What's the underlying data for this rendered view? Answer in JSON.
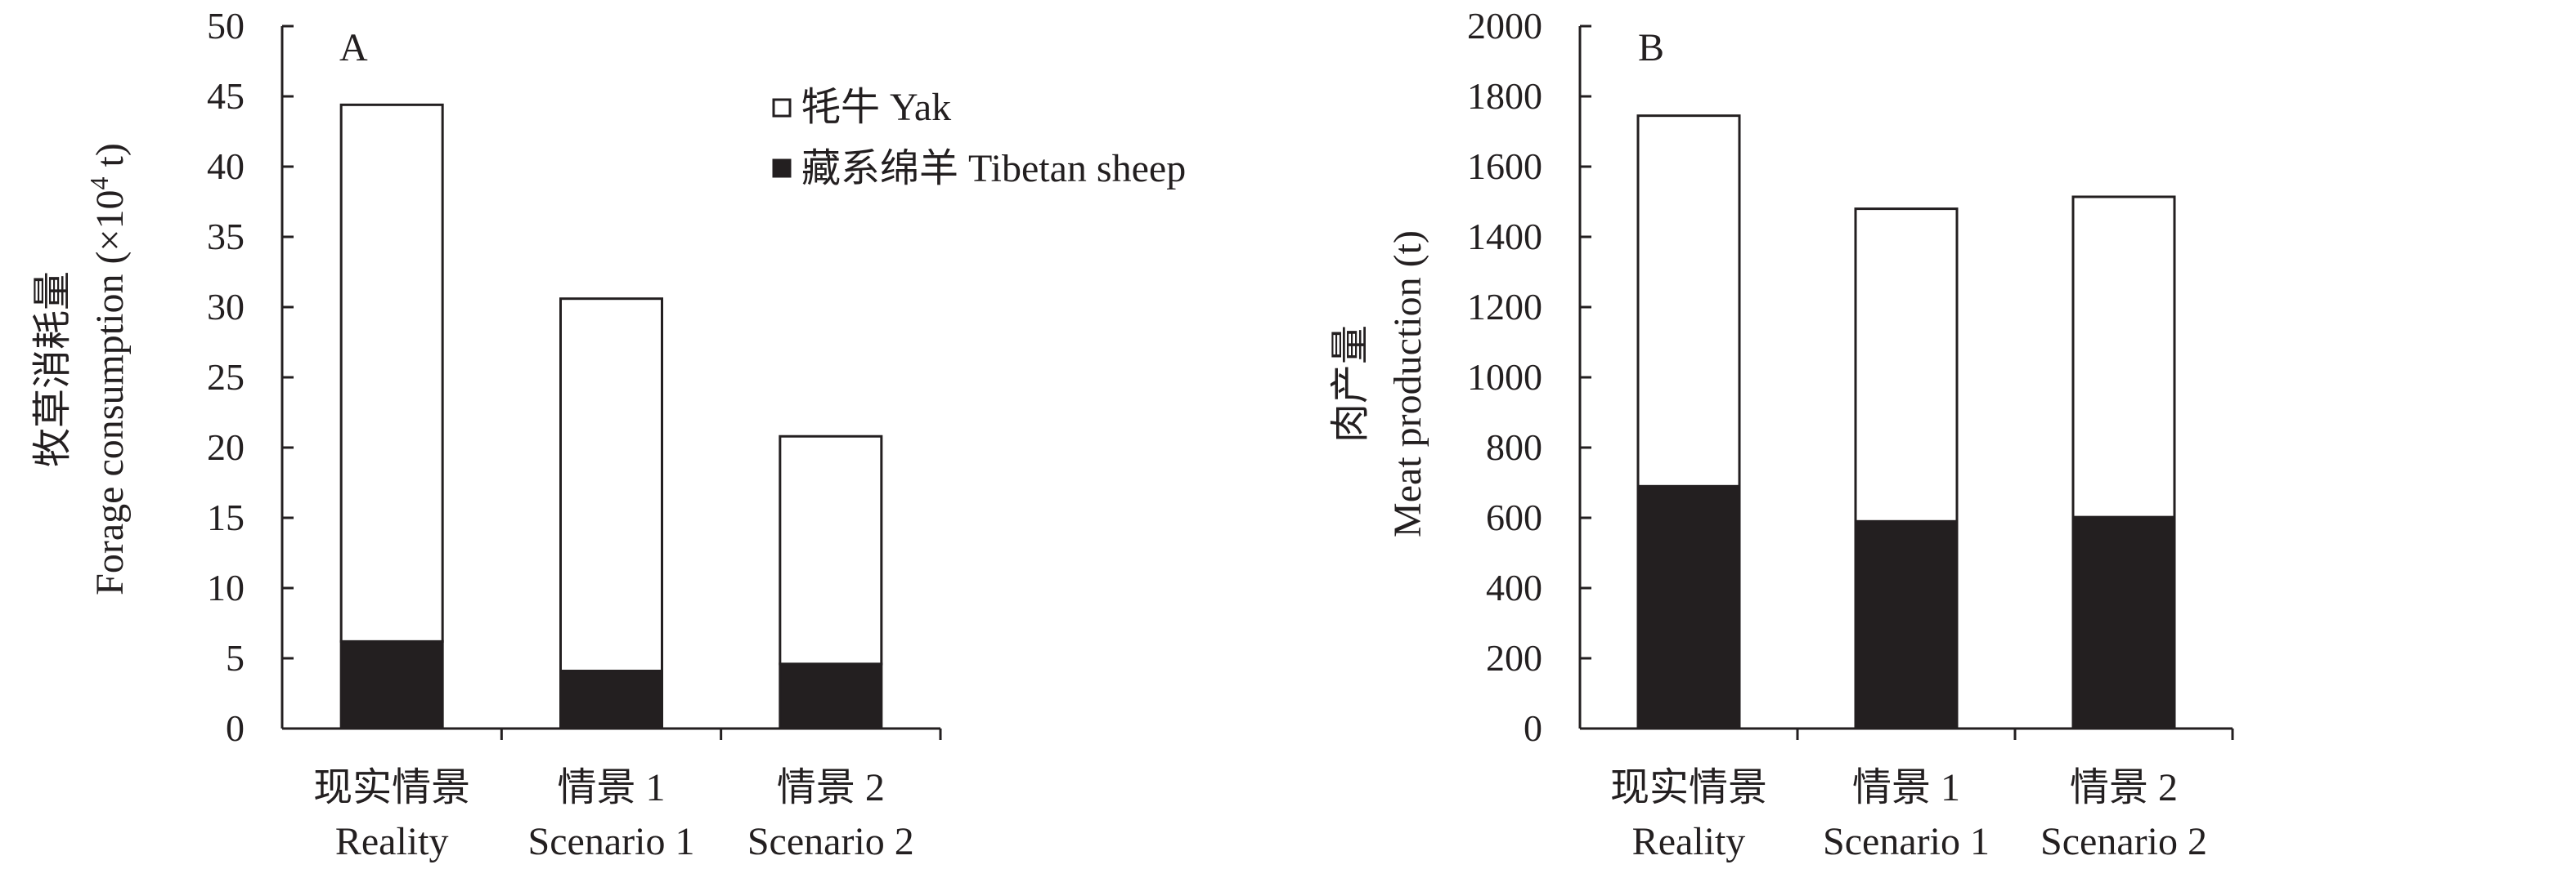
{
  "chart_data": [
    {
      "type": "bar",
      "stacked": true,
      "panel_label": "A",
      "ylabel_cn": "牧草消耗量",
      "ylabel_en_pre": "Forage consumption (×10",
      "ylabel_en_sup": "4",
      "ylabel_en_post": " t)",
      "ylim": [
        0,
        50
      ],
      "yticks": [
        "0",
        "5",
        "10",
        "15",
        "20",
        "25",
        "30",
        "35",
        "40",
        "45",
        "50"
      ],
      "categories": [
        {
          "cn": "现实情景",
          "en": "Reality"
        },
        {
          "cn": "情景 1",
          "en": "Scenario 1"
        },
        {
          "cn": "情景 2",
          "en": "Scenario 2"
        }
      ],
      "series": [
        {
          "name": "藏系绵羊 Tibetan sheep",
          "color": "#231f20",
          "values": [
            6.2,
            4.1,
            4.6
          ]
        },
        {
          "name": "牦牛 Yak",
          "color": "#ffffff",
          "values": [
            38.2,
            26.5,
            16.2
          ]
        }
      ],
      "legend": [
        {
          "label": "牦牛 Yak",
          "color": "#ffffff"
        },
        {
          "label": "藏系绵羊 Tibetan sheep",
          "color": "#231f20"
        }
      ],
      "grid": false
    },
    {
      "type": "bar",
      "stacked": true,
      "panel_label": "B",
      "ylabel_cn": "肉产量",
      "ylabel_en": "Meat production (t)",
      "ylim": [
        0,
        2000
      ],
      "yticks": [
        "0",
        "200",
        "400",
        "600",
        "800",
        "1000",
        "1200",
        "1400",
        "1600",
        "1800",
        "2000"
      ],
      "categories": [
        {
          "cn": "现实情景",
          "en": "Reality"
        },
        {
          "cn": "情景 1",
          "en": "Scenario 1"
        },
        {
          "cn": "情景 2",
          "en": "Scenario 2"
        }
      ],
      "series": [
        {
          "name": "藏系绵羊 Tibetan sheep",
          "color": "#231f20",
          "values": [
            690,
            590,
            602
          ]
        },
        {
          "name": "牦牛 Yak",
          "color": "#ffffff",
          "values": [
            1055,
            890,
            912
          ]
        }
      ],
      "grid": false
    }
  ]
}
